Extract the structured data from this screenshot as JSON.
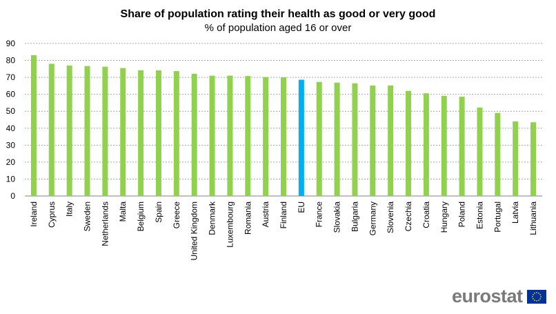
{
  "chart_data": {
    "type": "bar",
    "title": "Share of population rating their health as good or very good",
    "subtitle": "% of population aged 16 or over",
    "categories": [
      "Ireland",
      "Cyprus",
      "Italy",
      "Sweden",
      "Netherlands",
      "Malta",
      "Belgium",
      "Spain",
      "Greece",
      "United Kingdom",
      "Denmark",
      "Luxembourg",
      "Romania",
      "Austria",
      "Finland",
      "EU",
      "France",
      "Slovakia",
      "Bulgaria",
      "Germany",
      "Slovenia",
      "Czechia",
      "Croatia",
      "Hungary",
      "Poland",
      "Estonia",
      "Portugal",
      "Latvia",
      "Lithuania"
    ],
    "values": [
      83.1,
      78.0,
      77.0,
      76.7,
      76.3,
      75.5,
      74.2,
      74.1,
      73.7,
      72.1,
      71.0,
      71.0,
      70.8,
      70.2,
      70.0,
      68.6,
      67.3,
      66.9,
      66.5,
      65.2,
      65.2,
      62.0,
      60.6,
      59.1,
      58.6,
      52.2,
      49.0,
      44.0,
      43.5
    ],
    "highlight": "EU",
    "colors": {
      "bar": "#92d050",
      "highlight": "#00b0f0",
      "grid": "#a6a6a6"
    },
    "yticks": [
      0,
      10,
      20,
      30,
      40,
      50,
      60,
      70,
      80,
      90
    ],
    "ylim": [
      0,
      90
    ],
    "xlabel": "",
    "ylabel": ""
  },
  "branding": {
    "logo_text": "eurostat",
    "logo_icon": "eu-flag-icon",
    "flag_color": "#003399",
    "star_color": "#ffcc00"
  }
}
